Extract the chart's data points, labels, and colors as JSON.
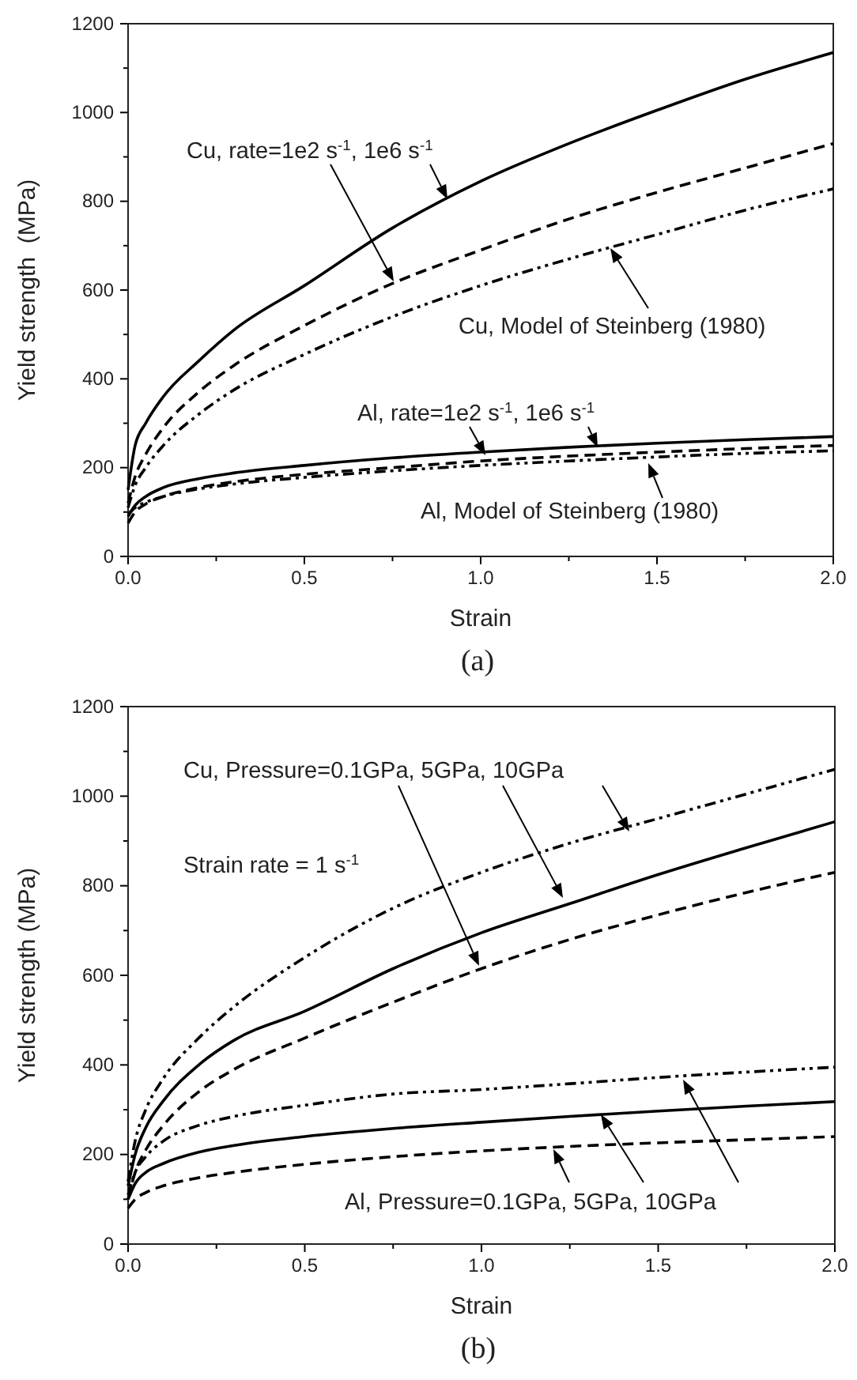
{
  "chart_data": [
    {
      "type": "line",
      "title": "(a)",
      "xlabel": "Strain",
      "ylabel": "Yield strength  (MPa)",
      "x": [
        0,
        0.02,
        0.05,
        0.1,
        0.2,
        0.3,
        0.5,
        0.75,
        1.0,
        1.25,
        1.5,
        1.75,
        2.0
      ],
      "xlim": [
        0,
        2
      ],
      "ylim": [
        0,
        1200
      ],
      "xticks": [
        {
          "value": 0,
          "label": "0.0"
        },
        {
          "value": 0.25,
          "label": null
        },
        {
          "value": 0.5,
          "label": "0.5"
        },
        {
          "value": 0.75,
          "label": null
        },
        {
          "value": 1,
          "label": "1.0"
        },
        {
          "value": 1.25,
          "label": null
        },
        {
          "value": 1.5,
          "label": "1.5"
        },
        {
          "value": 1.75,
          "label": null
        },
        {
          "value": 2,
          "label": "2.0"
        }
      ],
      "yticks": [
        0,
        {
          "value": 100,
          "label": null
        },
        200,
        {
          "value": 300,
          "label": null
        },
        400,
        {
          "value": 500,
          "label": null
        },
        600,
        {
          "value": 700,
          "label": null
        },
        800,
        {
          "value": 900,
          "label": null
        },
        1000,
        {
          "value": 1100,
          "label": null
        },
        1200
      ],
      "series": [
        {
          "color": "#000000",
          "line_style": "solid",
          "values": [
            150,
            250,
            300,
            360,
            440,
            510,
            610,
            740,
            845,
            930,
            1005,
            1075,
            1135
          ]
        },
        {
          "color": "#000000",
          "line_style": "dashed",
          "values": [
            120,
            180,
            230,
            290,
            370,
            430,
            520,
            615,
            690,
            760,
            820,
            875,
            930
          ]
        },
        {
          "color": "#000000",
          "line_style": "dotted",
          "values": [
            110,
            160,
            200,
            250,
            320,
            375,
            455,
            540,
            610,
            670,
            725,
            780,
            828
          ]
        },
        {
          "color": "#000000",
          "line_style": "solid",
          "values": [
            90,
            115,
            135,
            155,
            175,
            188,
            205,
            222,
            235,
            246,
            255,
            263,
            270
          ]
        },
        {
          "color": "#000000",
          "line_style": "dashed",
          "values": [
            75,
            100,
            118,
            135,
            155,
            168,
            185,
            200,
            215,
            226,
            235,
            243,
            250
          ]
        },
        {
          "color": "#000000",
          "line_style": "dotted",
          "values": [
            95,
            110,
            122,
            135,
            152,
            163,
            178,
            193,
            205,
            215,
            224,
            232,
            238
          ]
        }
      ],
      "annotations": [
        "Cu, rate=1e2 s$^{-1}$, 1e6 s$^{-1}$",
        "Cu, Model of Steinberg (1980)",
        "Al, rate=1e2 s$^{-1}$, 1e6 s$^{-1}$",
        "Al, Model of Steinberg (1980)"
      ]
    },
    {
      "type": "line",
      "title": "(b)",
      "xlabel": "Strain",
      "ylabel": "Yield strength (MPa)",
      "x": [
        0,
        0.02,
        0.05,
        0.1,
        0.2,
        0.3,
        0.5,
        0.75,
        1.0,
        1.25,
        1.5,
        1.75,
        2.0
      ],
      "xlim": [
        0,
        2
      ],
      "ylim": [
        0,
        1200
      ],
      "xticks": [
        {
          "value": 0,
          "label": "0.0"
        },
        {
          "value": 0.25,
          "label": null
        },
        {
          "value": 0.5,
          "label": "0.5"
        },
        {
          "value": 0.75,
          "label": null
        },
        {
          "value": 1,
          "label": "1.0"
        },
        {
          "value": 1.25,
          "label": null
        },
        {
          "value": 1.5,
          "label": "1.5"
        },
        {
          "value": 1.75,
          "label": null
        },
        {
          "value": 2,
          "label": "2.0"
        }
      ],
      "yticks": [
        0,
        {
          "value": 100,
          "label": null
        },
        200,
        {
          "value": 300,
          "label": null
        },
        400,
        {
          "value": 500,
          "label": null
        },
        600,
        {
          "value": 700,
          "label": null
        },
        800,
        {
          "value": 900,
          "label": null
        },
        1000,
        {
          "value": 1100,
          "label": null
        },
        1200
      ],
      "series": [
        {
          "color": "#000000",
          "line_style": "dotted",
          "values": [
            140,
            230,
            300,
            370,
            460,
            530,
            640,
            750,
            830,
            895,
            950,
            1005,
            1060
          ]
        },
        {
          "color": "#000000",
          "line_style": "solid",
          "values": [
            130,
            200,
            260,
            320,
            400,
            455,
            520,
            615,
            695,
            760,
            825,
            885,
            943
          ]
        },
        {
          "color": "#000000",
          "line_style": "dashed",
          "values": [
            100,
            160,
            210,
            265,
            340,
            390,
            460,
            540,
            615,
            680,
            735,
            785,
            830
          ]
        },
        {
          "color": "#000000",
          "line_style": "dotted",
          "values": [
            110,
            160,
            195,
            230,
            265,
            285,
            310,
            335,
            345,
            358,
            372,
            384,
            395
          ]
        },
        {
          "color": "#000000",
          "line_style": "solid",
          "values": [
            100,
            135,
            160,
            180,
            205,
            220,
            240,
            258,
            272,
            285,
            297,
            308,
            318
          ]
        },
        {
          "color": "#000000",
          "line_style": "dashed",
          "values": [
            80,
            100,
            115,
            130,
            148,
            160,
            178,
            195,
            208,
            218,
            226,
            233,
            240
          ]
        }
      ],
      "annotations": [
        "Cu, Pressure=0.1GPa, 5GPa, 10GPa",
        "Strain rate = 1 s$^{-1}$",
        "Al, Pressure=0.1GPa, 5GPa, 10GPa"
      ]
    }
  ]
}
